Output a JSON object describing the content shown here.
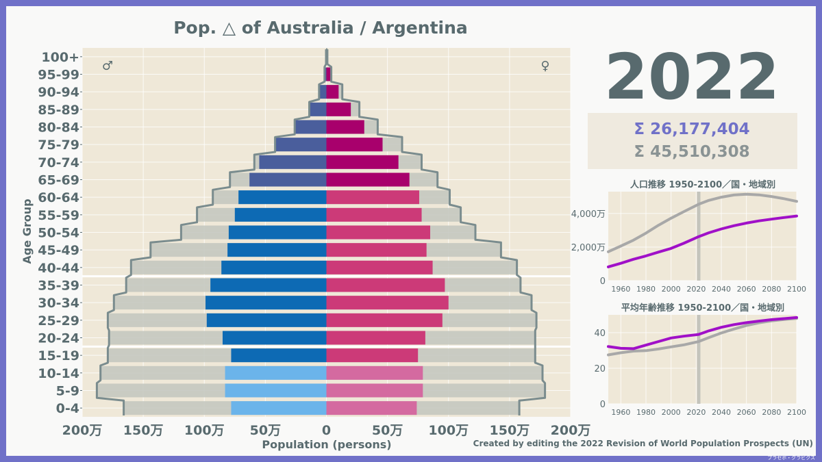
{
  "title": "Pop. △ of Australia / Argentina",
  "year": "2022",
  "total_primary": "Σ  26,177,404",
  "total_compare": "Σ  45,510,308",
  "male_symbol": "♂",
  "female_symbol": "♀",
  "credit": "Created by editing the 2022 Revision of World Population Prospects (UN)",
  "watermark": "プラセボ・グラビクス",
  "colors": {
    "male_child": "#6bb4ea",
    "male_working": "#0d6ab4",
    "male_elderly": "#4a5e9c",
    "female_child": "#d46aa0",
    "female_working": "#cc3a78",
    "female_elderly": "#a8006c",
    "compare_bar": "#c4c8c0",
    "compare_outline": "#7a8c8e",
    "line_primary": "#a010c8",
    "line_compare": "#a8a8a8",
    "plot_bg": "#efe8d8",
    "frame": "#7071c8"
  },
  "chart_data": [
    {
      "type": "bar",
      "orientation": "horizontal-pyramid",
      "title": "Pop. △ of Australia / Argentina",
      "ylabel": "Age Group",
      "xlabel": "Population (persons)",
      "categories": [
        "0-4",
        "5-9",
        "10-14",
        "15-19",
        "20-24",
        "25-29",
        "30-34",
        "35-39",
        "40-44",
        "45-49",
        "50-54",
        "55-59",
        "60-64",
        "65-69",
        "70-74",
        "75-79",
        "80-84",
        "85-89",
        "90-94",
        "95-99",
        "100+"
      ],
      "xlim": [
        -2000000,
        2000000
      ],
      "x_tick_values": [
        -2000000,
        -1500000,
        -1000000,
        -500000,
        0,
        500000,
        1000000,
        1500000,
        2000000
      ],
      "x_tick_labels": [
        "200万",
        "150万",
        "100万",
        "50万",
        "0",
        "50万",
        "100万",
        "150万",
        "200万"
      ],
      "series": [
        {
          "name": "Australia male",
          "values": [
            780000,
            830000,
            830000,
            780000,
            850000,
            980000,
            990000,
            950000,
            860000,
            810000,
            800000,
            750000,
            720000,
            630000,
            550000,
            420000,
            260000,
            140000,
            60000,
            15000,
            3000
          ]
        },
        {
          "name": "Australia female",
          "values": [
            740000,
            790000,
            790000,
            750000,
            810000,
            950000,
            1000000,
            970000,
            870000,
            820000,
            850000,
            780000,
            760000,
            680000,
            590000,
            460000,
            310000,
            200000,
            100000,
            35000,
            6000
          ]
        },
        {
          "name": "Argentina male",
          "values": [
            1660000,
            1880000,
            1850000,
            1790000,
            1780000,
            1790000,
            1740000,
            1640000,
            1600000,
            1440000,
            1190000,
            1060000,
            930000,
            790000,
            590000,
            420000,
            260000,
            140000,
            60000,
            15000,
            3000
          ]
        },
        {
          "name": "Argentina female",
          "values": [
            1580000,
            1790000,
            1770000,
            1710000,
            1710000,
            1720000,
            1680000,
            1590000,
            1560000,
            1430000,
            1220000,
            1100000,
            1010000,
            910000,
            780000,
            620000,
            420000,
            270000,
            130000,
            40000,
            8000
          ]
        }
      ]
    },
    {
      "type": "line",
      "title": "人口推移 1950-2100／国・地域別",
      "xlim": [
        1950,
        2100
      ],
      "ylim": [
        0,
        5300
      ],
      "x_tick_values": [
        1960,
        1980,
        2000,
        2020,
        2040,
        2060,
        2080,
        2100
      ],
      "x_tick_labels": [
        "1960",
        "1980",
        "2000",
        "2020",
        "2040",
        "2060",
        "2080",
        "2100"
      ],
      "y_tick_values": [
        0,
        2000,
        4000
      ],
      "y_tick_labels": [
        "0",
        "2,000万",
        "4,000万"
      ],
      "marker_x": 2022,
      "x": [
        1950,
        1960,
        1970,
        1980,
        1990,
        2000,
        2010,
        2022,
        2030,
        2040,
        2050,
        2060,
        2070,
        2080,
        2090,
        2100
      ],
      "series": [
        {
          "name": "Australia",
          "values": [
            820,
            1030,
            1270,
            1470,
            1700,
            1920,
            2220,
            2620,
            2850,
            3080,
            3270,
            3430,
            3560,
            3660,
            3760,
            3850
          ]
        },
        {
          "name": "Argentina",
          "values": [
            1720,
            2060,
            2410,
            2830,
            3300,
            3720,
            4100,
            4550,
            4780,
            4970,
            5100,
            5150,
            5110,
            5010,
            4880,
            4720
          ]
        }
      ]
    },
    {
      "type": "line",
      "title": "平均年齢推移 1950-2100／国・地域別",
      "xlim": [
        1950,
        2100
      ],
      "ylim": [
        0,
        50
      ],
      "x_tick_values": [
        1960,
        1980,
        2000,
        2020,
        2040,
        2060,
        2080,
        2100
      ],
      "x_tick_labels": [
        "1960",
        "1980",
        "2000",
        "2020",
        "2040",
        "2060",
        "2080",
        "2100"
      ],
      "y_tick_values": [
        0,
        20,
        40
      ],
      "y_tick_labels": [
        "0",
        "20",
        "40"
      ],
      "marker_x": 2022,
      "x": [
        1950,
        1960,
        1970,
        1980,
        1990,
        2000,
        2010,
        2022,
        2030,
        2040,
        2050,
        2060,
        2070,
        2080,
        2090,
        2100
      ],
      "series": [
        {
          "name": "Australia",
          "values": [
            32.2,
            31.2,
            31.0,
            33.0,
            35.0,
            37.0,
            38.0,
            39.0,
            41.0,
            43.0,
            44.5,
            45.6,
            46.5,
            47.3,
            47.9,
            48.5
          ]
        },
        {
          "name": "Argentina",
          "values": [
            27.5,
            28.7,
            29.6,
            29.9,
            30.8,
            32.0,
            33.1,
            35.0,
            37.2,
            39.8,
            42.0,
            44.0,
            45.5,
            46.6,
            47.4,
            48.0
          ]
        }
      ]
    }
  ]
}
